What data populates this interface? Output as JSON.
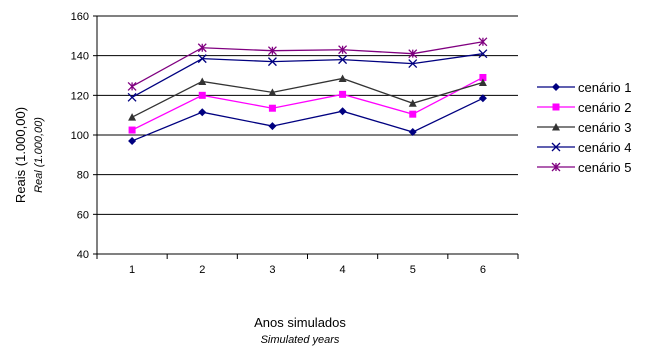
{
  "chart_data": {
    "type": "line",
    "categories": [
      "1",
      "2",
      "3",
      "4",
      "5",
      "6"
    ],
    "ylabel": "Reais (1.000,00)",
    "ylabel_en": "Real (1.000,00)",
    "xlabel": "Anos simulados",
    "xlabel_en": "Simulated years",
    "ylim": [
      40,
      160
    ],
    "yticks": [
      "40",
      "60",
      "80",
      "100",
      "120",
      "140",
      "160"
    ],
    "grid": true,
    "legend_position": "right",
    "series": [
      {
        "name": "cenário 1",
        "values": [
          97,
          111.5,
          104.5,
          112,
          101.5,
          118.5
        ],
        "color": "#000080",
        "marker": "diamond"
      },
      {
        "name": "cenário 2",
        "values": [
          102.5,
          120,
          113.5,
          120.5,
          110.5,
          129
        ],
        "color": "#ff00ff",
        "marker": "square"
      },
      {
        "name": "cenário 3",
        "values": [
          109,
          127,
          121.5,
          128.5,
          116,
          126.5
        ],
        "color": "#333333",
        "marker": "triangle"
      },
      {
        "name": "cenário 4",
        "values": [
          119,
          138.5,
          137,
          138,
          136,
          141
        ],
        "color": "#000080",
        "marker": "x"
      },
      {
        "name": "cenário 5",
        "values": [
          124.5,
          144,
          142.5,
          143,
          141,
          147
        ],
        "color": "#800080",
        "marker": "star"
      }
    ]
  }
}
